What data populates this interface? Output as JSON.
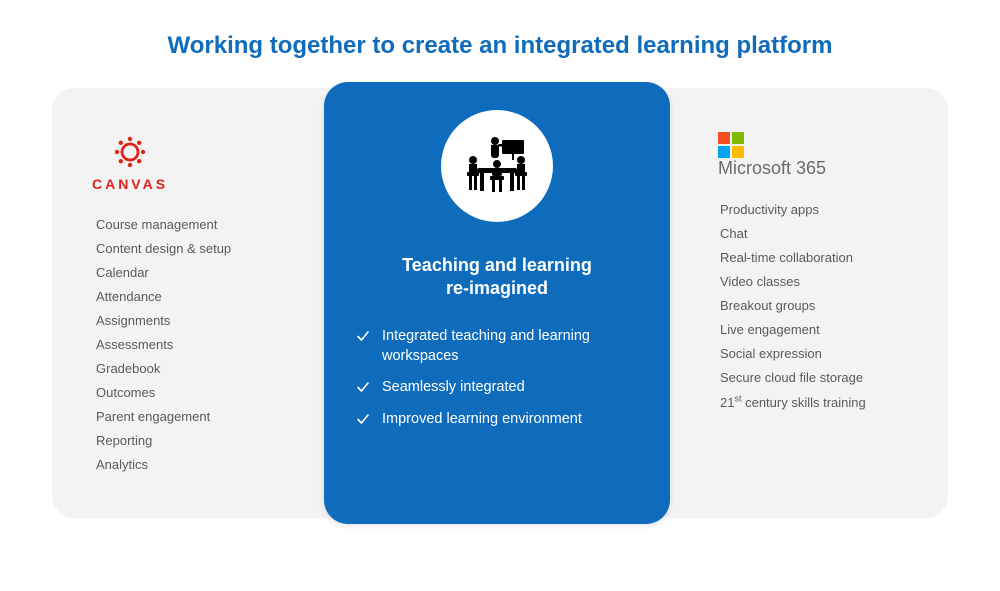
{
  "title": "Working together to create an integrated learning platform",
  "colors": {
    "accent_blue": "#0f6cbd",
    "canvas_red": "#e2231a",
    "panel_bg": "#f3f3f3",
    "page_bg": "#ffffff",
    "body_text": "#5a5a5a",
    "white": "#ffffff",
    "ms_red": "#f25022",
    "ms_green": "#7fba00",
    "ms_blue": "#00a4ef",
    "ms_yellow": "#ffb900"
  },
  "left": {
    "brand_label": "CANVAS",
    "items": [
      "Course management",
      "Content design & setup",
      "Calendar",
      "Attendance",
      "Assignments",
      "Assessments",
      "Gradebook",
      "Outcomes",
      "Parent engagement",
      "Reporting",
      "Analytics"
    ]
  },
  "center": {
    "heading_line1": "Teaching and learning",
    "heading_line2": "re-imagined",
    "bullets": [
      "Integrated teaching and learning workspaces",
      "Seamlessly integrated",
      "Improved learning environment"
    ]
  },
  "right": {
    "brand_label": "Microsoft 365",
    "items": [
      "Productivity apps",
      "Chat",
      "Real-time collaboration",
      "Video classes",
      "Breakout groups",
      "Live engagement",
      "Social expression",
      "Secure cloud file storage",
      "21st century skills training"
    ]
  }
}
